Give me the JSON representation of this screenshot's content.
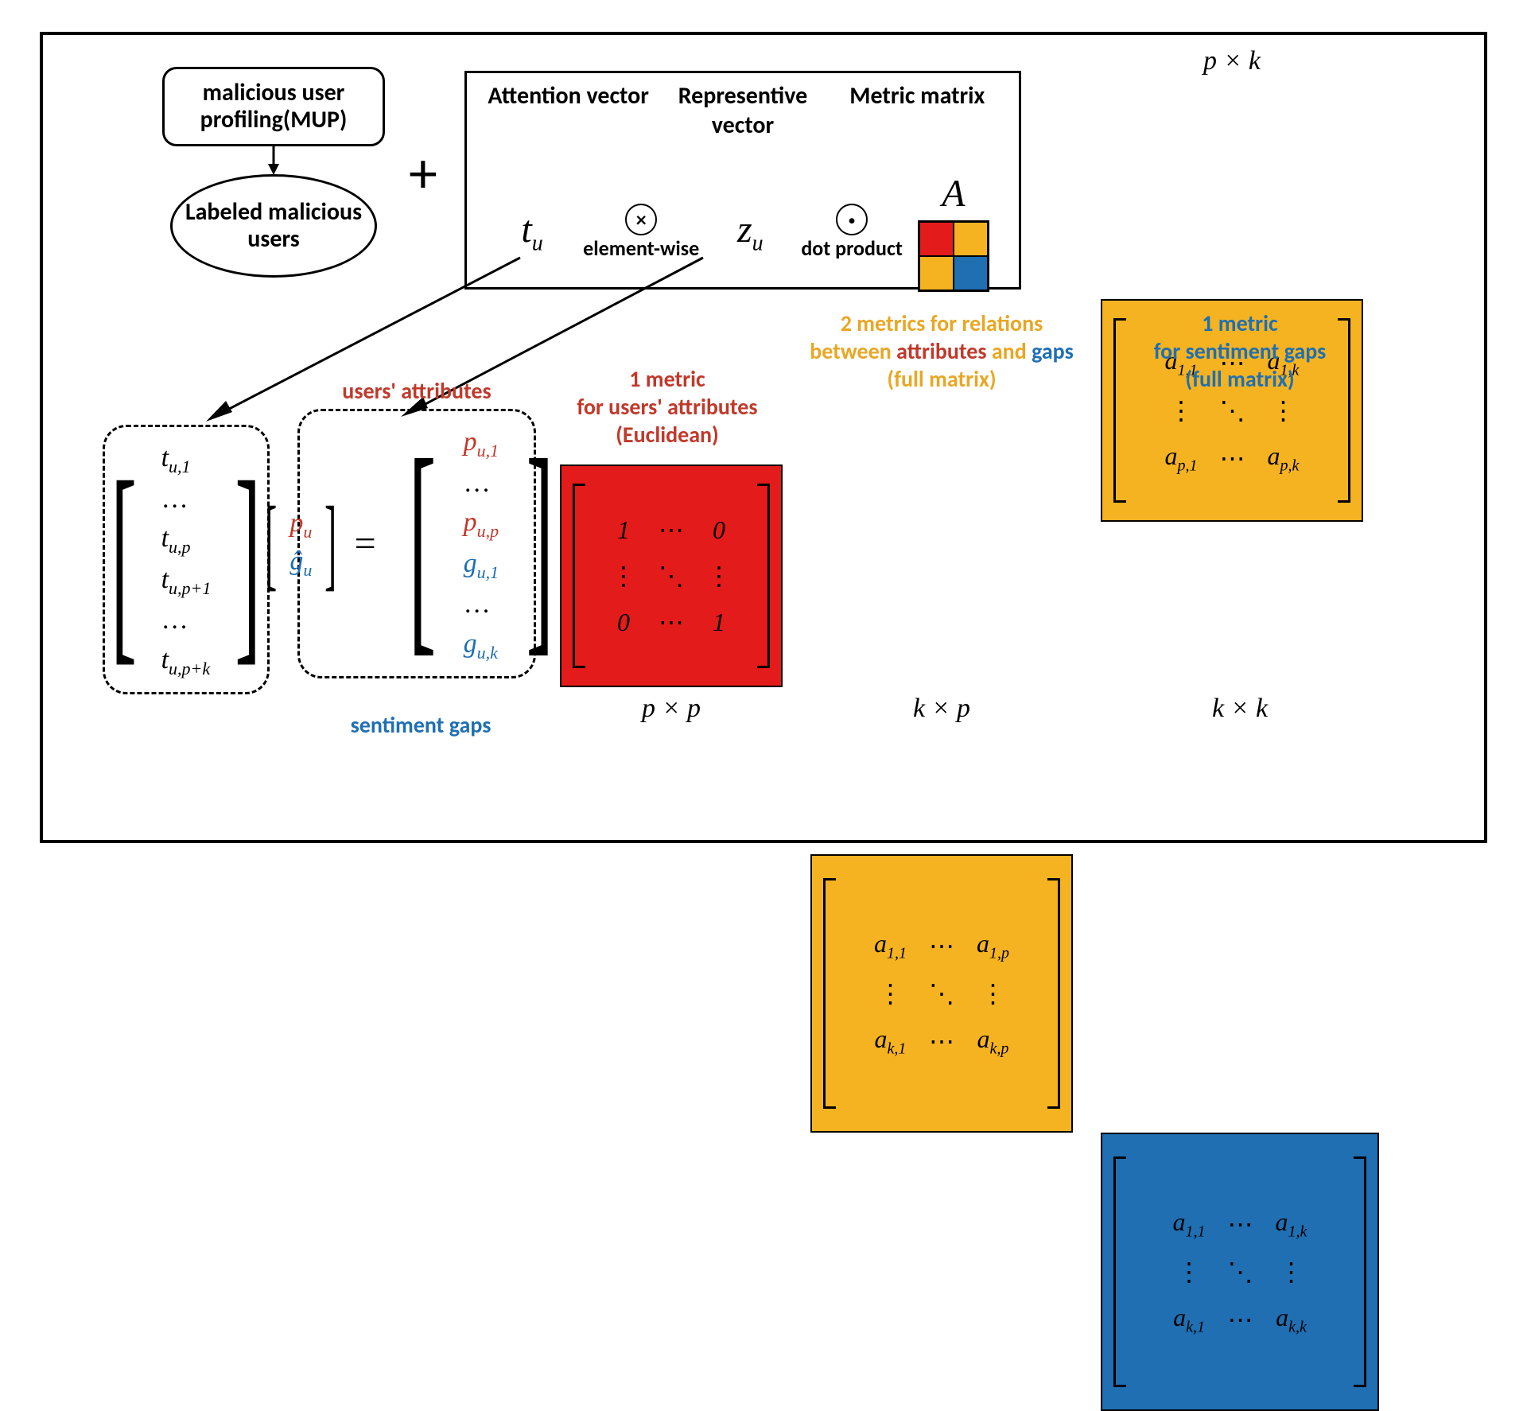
{
  "colors": {
    "red": "#e31b1b",
    "orange": "#f5b321",
    "blue": "#1f6fb2",
    "text_red": "#c0392b",
    "text_blue": "#1f6fb2",
    "text_orange": "#e8a724",
    "black": "#000000",
    "white": "#ffffff"
  },
  "mup": {
    "box": "malicious user profiling(MUP)",
    "ellipse": "Labeled malicious users"
  },
  "plus": "+",
  "formula": {
    "h1": "Attention vector",
    "h2": "Representive vector",
    "h3": "Metric matrix",
    "tu": "t",
    "tu_sub": "u",
    "zu": "z",
    "zu_sub": "u",
    "A": "A",
    "op1_label": "element-wise",
    "op1_sym": "×",
    "op2_label": "dot product",
    "op2_sym": "·",
    "mini_colors": [
      "#e31b1b",
      "#f5b321",
      "#f5b321",
      "#1f6fb2"
    ]
  },
  "tu_vec": {
    "rows": [
      "t_{u,1}",
      "…",
      "t_{u,p}",
      "t_{u,p+1}",
      "…",
      "t_{u,p+k}"
    ]
  },
  "zu_vec": {
    "title_top": "users' attributes",
    "title_bottom": "sentiment gaps",
    "left_top": "p_{u}",
    "left_bottom": "ĝ_{u}",
    "eq": "=",
    "rows": [
      {
        "t": "p_{u,1}",
        "c": "red"
      },
      {
        "t": "…",
        "c": "black"
      },
      {
        "t": "p_{u,p}",
        "c": "red"
      },
      {
        "t": "g_{u,1}",
        "c": "blue"
      },
      {
        "t": "…",
        "c": "black"
      },
      {
        "t": "g_{u,k}",
        "c": "blue"
      }
    ]
  },
  "metric_red": {
    "title_l1": "1 metric",
    "title_l2": "for users' attributes",
    "title_l3": "(Euclidean)",
    "dim": "p × p",
    "cells": [
      "1",
      "⋯",
      "0",
      "⋮",
      "⋱",
      "⋮",
      "0",
      "⋯",
      "1"
    ],
    "bg": "#e31b1b"
  },
  "metric_orange_top": {
    "dim": "p × k",
    "cells": [
      "a_{1,1}",
      "⋯",
      "a_{1,k}",
      "⋮",
      "⋱",
      "⋮",
      "a_{p,1}",
      "⋯",
      "a_{p,k}"
    ],
    "bg": "#f5b321"
  },
  "metric_orange_bottom": {
    "title_a": "2 metrics  for  relations",
    "title_b_pre": "between ",
    "title_b_attr": "attributes",
    "title_b_mid": " and ",
    "title_b_gaps": "gaps",
    "title_c": "(full matrix)",
    "dim": "k × p",
    "cells": [
      "a_{1,1}",
      "⋯",
      "a_{1,p}",
      "⋮",
      "⋱",
      "⋮",
      "a_{k,1}",
      "⋯",
      "a_{k,p}"
    ],
    "bg": "#f5b321"
  },
  "metric_blue": {
    "title_l1": "1 metric",
    "title_l2": "for sentiment gaps",
    "title_l3": "(full matrix)",
    "dim": "k × k",
    "cells": [
      "a_{1,1}",
      "⋯",
      "a_{1,k}",
      "⋮",
      "⋱",
      "⋮",
      "a_{k,1}",
      "⋯",
      "a_{k,k}"
    ],
    "bg": "#1f6fb2"
  },
  "fonts": {
    "title_size_pt": 22,
    "math_size_pt": 26,
    "dim_size_pt": 26
  }
}
